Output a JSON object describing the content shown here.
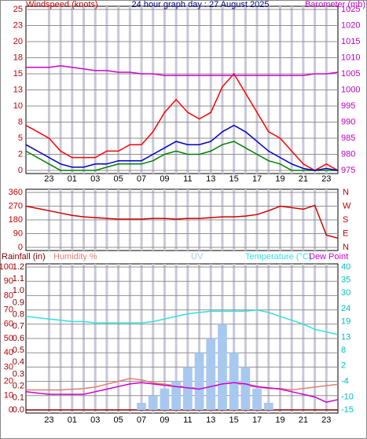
{
  "chart_data": [
    {
      "type": "line",
      "title": "24 hour graph day : 27 August 2025",
      "ylabel": "Windspeed (knots)",
      "y2label": "Barometer (mb)",
      "ycolor": "#c00000",
      "y2color": "#c000c0",
      "titlecolor": "#000080",
      "x": [
        0,
        1,
        2,
        3,
        4,
        5,
        6,
        7,
        8,
        9,
        10,
        11,
        12,
        13,
        14,
        15,
        16,
        17,
        18,
        19,
        20,
        21,
        22,
        23,
        24,
        25,
        26,
        27
      ],
      "xlim": [
        0,
        27
      ],
      "xticks": [
        {
          "value": 2,
          "label": "23"
        },
        {
          "value": 4,
          "label": "01"
        },
        {
          "value": 6,
          "label": "03"
        },
        {
          "value": 8,
          "label": "05"
        },
        {
          "value": 10,
          "label": "07"
        },
        {
          "value": 12,
          "label": "09"
        },
        {
          "value": 14,
          "label": "11"
        },
        {
          "value": 16,
          "label": "13"
        },
        {
          "value": 18,
          "label": "15"
        },
        {
          "value": 20,
          "label": "17"
        },
        {
          "value": 22,
          "label": "19"
        },
        {
          "value": 24,
          "label": "21"
        },
        {
          "value": 26,
          "label": "23"
        }
      ],
      "ylim": [
        0,
        25
      ],
      "yticks": [
        0,
        {
          "value": 2.5,
          "label": "2"
        },
        5,
        {
          "value": 7.5,
          "label": "8"
        },
        10,
        {
          "value": 12.5,
          "label": "13"
        },
        15,
        {
          "value": 17.5,
          "label": "18"
        },
        20,
        {
          "value": 22.5,
          "label": "23"
        },
        25
      ],
      "y2lim": [
        975,
        1025
      ],
      "y2ticks": [
        975,
        980,
        985,
        990,
        995,
        1000,
        1005,
        1010,
        1015,
        1020,
        1025
      ],
      "grid": true,
      "series": [
        {
          "color": "#ff0000",
          "axis": "y",
          "values": [
            7,
            6,
            5,
            3,
            2,
            2,
            2,
            3,
            3,
            4,
            4,
            6,
            9,
            11,
            9,
            8,
            9,
            13,
            15,
            12,
            9,
            6,
            5,
            3,
            1,
            0,
            1,
            0
          ]
        },
        {
          "color": "#008000",
          "axis": "y",
          "values": [
            3,
            2,
            1,
            0,
            0,
            0,
            0,
            0.5,
            1,
            1,
            1,
            1.5,
            2.5,
            3,
            2.5,
            2.5,
            3,
            4,
            4.5,
            3.5,
            2.5,
            1.5,
            1,
            0,
            0,
            0,
            0,
            0
          ]
        },
        {
          "color": "#0000c0",
          "axis": "y",
          "values": [
            4,
            3,
            2,
            1,
            0.5,
            0.5,
            1,
            1,
            1.5,
            1.5,
            1.5,
            2.5,
            3.5,
            4.5,
            4,
            4,
            4.5,
            6,
            7,
            6,
            4.5,
            3,
            2,
            1,
            0.3,
            0,
            0.3,
            0
          ]
        },
        {
          "color": "#d000d0",
          "axis": "y2",
          "values": [
            1007,
            1007,
            1007,
            1007.5,
            1007,
            1006.5,
            1006,
            1006,
            1005.5,
            1005.5,
            1005,
            1005,
            1004.5,
            1004.5,
            1004.5,
            1004.5,
            1004.5,
            1004.5,
            1004.5,
            1004.5,
            1004.5,
            1004.5,
            1004.5,
            1004.5,
            1004.5,
            1005,
            1005,
            1005.5
          ]
        }
      ]
    },
    {
      "type": "line",
      "ycolor": "#c00000",
      "y2color": "#c00000",
      "x": [
        0,
        1,
        2,
        3,
        4,
        5,
        6,
        7,
        8,
        9,
        10,
        11,
        12,
        13,
        14,
        15,
        16,
        17,
        18,
        19,
        20,
        21,
        22,
        23,
        24,
        25,
        26,
        27
      ],
      "xlim": [
        0,
        27
      ],
      "xgrid": [
        2,
        4,
        6,
        8,
        10,
        12,
        14,
        16,
        18,
        20,
        22,
        24,
        26
      ],
      "ylim": [
        0,
        360
      ],
      "yticks": [
        0,
        90,
        180,
        270,
        360
      ],
      "y2lim": [
        0,
        360
      ],
      "y2ticks": [
        {
          "value": 0,
          "label": "N"
        },
        {
          "value": 90,
          "label": "E"
        },
        {
          "value": 180,
          "label": "S"
        },
        {
          "value": 270,
          "label": "W"
        },
        {
          "value": 360,
          "label": "N"
        }
      ],
      "grid": true,
      "series": [
        {
          "color": "#d00000",
          "axis": "y",
          "values": [
            270,
            255,
            240,
            225,
            210,
            200,
            195,
            190,
            185,
            185,
            185,
            190,
            190,
            185,
            190,
            190,
            195,
            200,
            200,
            205,
            215,
            240,
            270,
            260,
            250,
            275,
            80,
            60
          ]
        }
      ]
    },
    {
      "type": "line",
      "ycolor": "#c00000",
      "raincolor": "#800000",
      "y2color": "#00c0c0",
      "x": [
        0,
        1,
        2,
        3,
        4,
        5,
        6,
        7,
        8,
        9,
        10,
        11,
        12,
        13,
        14,
        15,
        16,
        17,
        18,
        19,
        20,
        21,
        22,
        23,
        24,
        25,
        26,
        27
      ],
      "xlim": [
        0,
        27
      ],
      "xticks": [
        {
          "value": 2,
          "label": "23"
        },
        {
          "value": 4,
          "label": "01"
        },
        {
          "value": 6,
          "label": "03"
        },
        {
          "value": 8,
          "label": "05"
        },
        {
          "value": 10,
          "label": "07"
        },
        {
          "value": 12,
          "label": "09"
        },
        {
          "value": 14,
          "label": "11"
        },
        {
          "value": 16,
          "label": "13"
        },
        {
          "value": 18,
          "label": "15"
        },
        {
          "value": 20,
          "label": "17"
        },
        {
          "value": 22,
          "label": "19"
        },
        {
          "value": 24,
          "label": "21"
        },
        {
          "value": 26,
          "label": "23"
        }
      ],
      "ylim": [
        0,
        100
      ],
      "yticks": [
        0,
        10,
        20,
        30,
        40,
        50,
        60,
        70,
        80,
        90,
        100
      ],
      "rainlim": [
        0,
        1.2
      ],
      "rainticks": [
        {
          "value": 0,
          "label": "0.0"
        },
        0.1,
        0.2,
        0.3,
        0.4,
        0.5,
        0.6,
        0.7,
        0.8,
        0.9,
        {
          "value": 1,
          "label": "1.0"
        },
        1.1,
        1.2
      ],
      "uvlim": [
        0,
        10
      ],
      "y2lim": [
        -15,
        40
      ],
      "y2ticks": [
        -15,
        -10,
        -4,
        2,
        8,
        13,
        19,
        24,
        30,
        35,
        40
      ],
      "grid": true,
      "series": [
        {
          "name": "Rainfall (in)",
          "color": "#800000",
          "axis": "rain",
          "values": [
            0,
            0,
            0,
            0,
            0,
            0,
            0,
            0,
            0,
            0,
            0,
            0,
            0,
            0,
            0,
            0,
            0,
            0,
            0,
            0,
            0,
            0,
            0,
            0,
            0,
            0,
            0,
            0
          ]
        },
        {
          "name": "Humidity %",
          "color": "#e08070",
          "axis": "y",
          "values": [
            14,
            14,
            14,
            14,
            14.5,
            15,
            16,
            18,
            20,
            22,
            21,
            19,
            18,
            17,
            16,
            15,
            16,
            18,
            19,
            17,
            16,
            15,
            15,
            14,
            15,
            16,
            17,
            18
          ]
        },
        {
          "name": "UV",
          "color": "#a8c8f0",
          "axis": "uv",
          "style": "bar",
          "values": [
            0,
            0,
            0,
            0,
            0,
            0,
            0,
            0,
            0,
            0,
            0.5,
            1,
            1.5,
            2,
            3,
            4,
            5,
            6,
            4,
            3,
            1.5,
            0.5,
            0,
            0,
            0,
            0,
            0,
            0
          ]
        },
        {
          "name": "Temperature (°C)",
          "color": "#30e0e0",
          "axis": "y2",
          "values": [
            21,
            20.5,
            20,
            19.5,
            19,
            19,
            18.5,
            18.5,
            18.5,
            18.5,
            18.5,
            19,
            20,
            21,
            22,
            22.5,
            23,
            23,
            23,
            23,
            23.5,
            22.5,
            21,
            19.5,
            18,
            16,
            15,
            14
          ]
        },
        {
          "name": "Dew Point",
          "color": "#d000d0",
          "axis": "y2",
          "values": [
            -8,
            -8.5,
            -9,
            -9,
            -9,
            -9,
            -8,
            -7,
            -6,
            -5,
            -4.5,
            -5,
            -5.5,
            -6,
            -6.5,
            -7,
            -6,
            -5,
            -4.5,
            -5,
            -6,
            -6.5,
            -7,
            -8,
            -9,
            -10,
            -12,
            -11
          ]
        }
      ]
    }
  ]
}
